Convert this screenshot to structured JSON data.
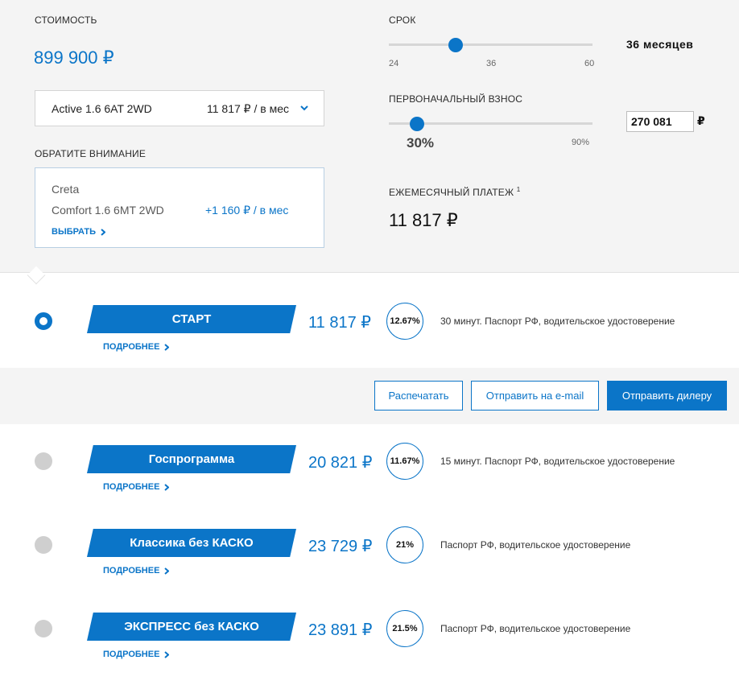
{
  "calc": {
    "cost_label": "СТОИМОСТЬ",
    "cost_value": "899 900 ₽",
    "model": {
      "name": "Active 1.6 6AT 2WD",
      "payment": "11 817 ₽ / в мес"
    },
    "notice_label": "ОБРАТИТЕ ВНИМАНИЕ",
    "notice": {
      "model": "Creta",
      "config": "Comfort 1.6 6MT 2WD",
      "delta": "+1 160 ₽ / в мес",
      "choose": "ВЫБРАТЬ"
    },
    "term": {
      "label": "СРОК",
      "min": "24",
      "mid": "36",
      "max": "60",
      "value": "36 месяцев",
      "position": 0.33
    },
    "down_payment": {
      "label": "ПЕРВОНАЧАЛЬНЫЙ ВЗНОС",
      "percent": "30%",
      "max": "90%",
      "amount": "270 081",
      "currency": "₽",
      "position": 0.33
    },
    "monthly": {
      "label": "ЕЖЕМЕСЯЧНЫЙ ПЛАТЕЖ",
      "note": "1",
      "value": "11 817 ₽"
    }
  },
  "programs": [
    {
      "name": "СТАРТ",
      "payment": "11 817 ₽",
      "rate": "12.67%",
      "desc": "30 минут. Паспорт РФ, водительское удостоверение",
      "more": "ПОДРОБНЕЕ",
      "selected": true
    },
    {
      "name": "Госпрограмма",
      "payment": "20 821 ₽",
      "rate": "11.67%",
      "desc": "15 минут. Паспорт РФ, водительское удостоверение",
      "more": "ПОДРОБНЕЕ",
      "selected": false
    },
    {
      "name": "Классика без КАСКО",
      "payment": "23 729 ₽",
      "rate": "21%",
      "desc": "Паспорт РФ, водительское удостоверение",
      "more": "ПОДРОБНЕЕ",
      "selected": false
    },
    {
      "name": "ЭКСПРЕСС без КАСКО",
      "payment": "23 891 ₽",
      "rate": "21.5%",
      "desc": "Паспорт РФ, водительское удостоверение",
      "more": "ПОДРОБНЕЕ",
      "selected": false
    }
  ],
  "actions": {
    "print": "Распечатать",
    "email": "Отправить на e-mail",
    "dealer": "Отправить дилеру"
  },
  "colors": {
    "accent": "#0b75c8",
    "panel": "#f4f4f4",
    "radio_off": "#cfcfcf"
  },
  "icons": {
    "chevron_down": "chevron-down-icon",
    "chevron_right": "chevron-right-icon"
  }
}
